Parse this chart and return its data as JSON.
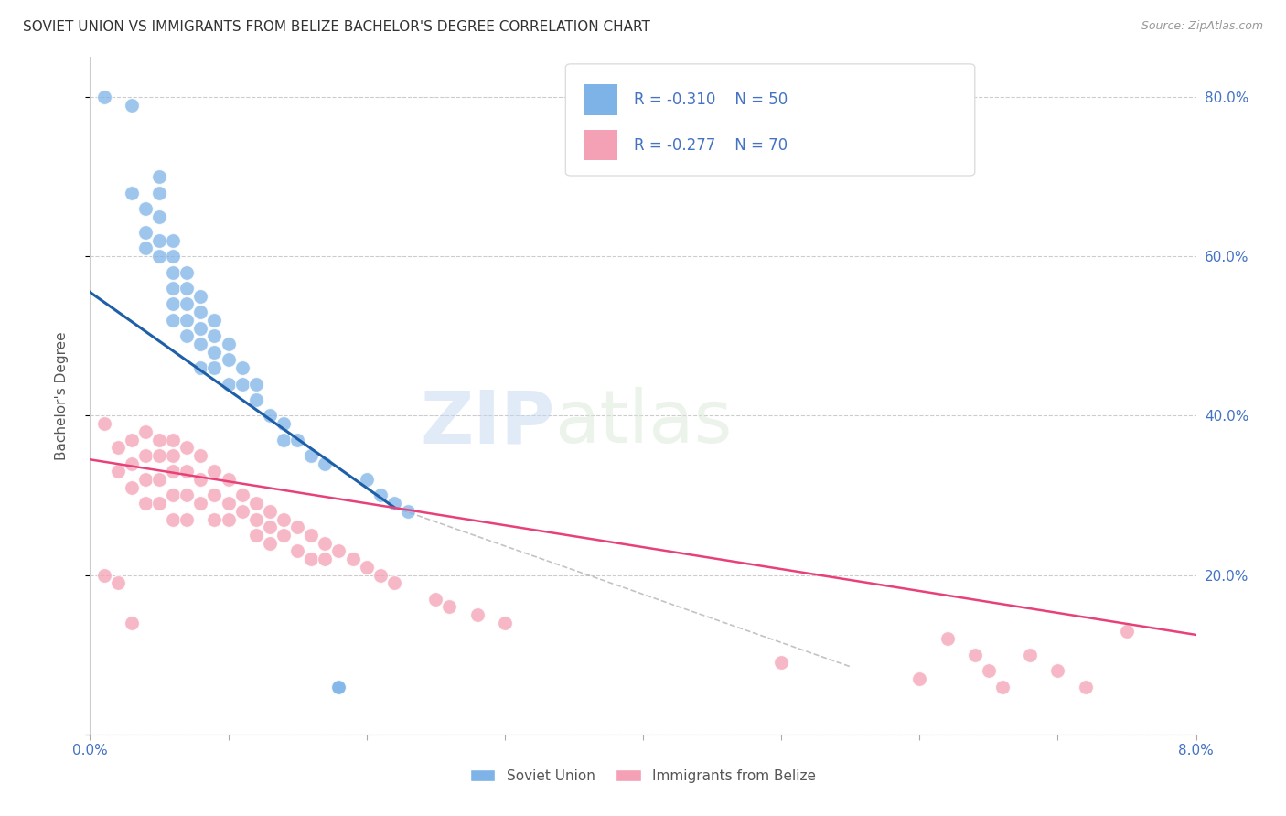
{
  "title": "SOVIET UNION VS IMMIGRANTS FROM BELIZE BACHELOR'S DEGREE CORRELATION CHART",
  "source": "Source: ZipAtlas.com",
  "ylabel": "Bachelor's Degree",
  "x_min": 0.0,
  "x_max": 0.08,
  "y_min": 0.0,
  "y_max": 0.85,
  "y_ticks": [
    0.0,
    0.2,
    0.4,
    0.6,
    0.8
  ],
  "y_tick_labels": [
    "",
    "20.0%",
    "40.0%",
    "60.0%",
    "80.0%"
  ],
  "x_ticks": [
    0.0,
    0.01,
    0.02,
    0.03,
    0.04,
    0.05,
    0.06,
    0.07,
    0.08
  ],
  "legend_R_blue": "R = -0.310",
  "legend_N_blue": "N = 50",
  "legend_R_pink": "R = -0.277",
  "legend_N_pink": "N = 70",
  "legend_label_blue": "Soviet Union",
  "legend_label_pink": "Immigrants from Belize",
  "blue_color": "#7EB3E8",
  "pink_color": "#F4A0B5",
  "blue_line_color": "#1E5FA8",
  "pink_line_color": "#E8417A",
  "watermark_zip": "ZIP",
  "watermark_atlas": "atlas",
  "blue_scatter_x": [
    0.001,
    0.003,
    0.003,
    0.004,
    0.004,
    0.004,
    0.005,
    0.005,
    0.005,
    0.005,
    0.005,
    0.006,
    0.006,
    0.006,
    0.006,
    0.006,
    0.006,
    0.007,
    0.007,
    0.007,
    0.007,
    0.007,
    0.008,
    0.008,
    0.008,
    0.008,
    0.008,
    0.009,
    0.009,
    0.009,
    0.009,
    0.01,
    0.01,
    0.01,
    0.011,
    0.011,
    0.012,
    0.012,
    0.013,
    0.014,
    0.014,
    0.015,
    0.016,
    0.017,
    0.018,
    0.018,
    0.02,
    0.021,
    0.022,
    0.023
  ],
  "blue_scatter_y": [
    0.8,
    0.79,
    0.68,
    0.66,
    0.63,
    0.61,
    0.7,
    0.68,
    0.65,
    0.62,
    0.6,
    0.62,
    0.6,
    0.58,
    0.56,
    0.54,
    0.52,
    0.58,
    0.56,
    0.54,
    0.52,
    0.5,
    0.55,
    0.53,
    0.51,
    0.49,
    0.46,
    0.52,
    0.5,
    0.48,
    0.46,
    0.49,
    0.47,
    0.44,
    0.46,
    0.44,
    0.44,
    0.42,
    0.4,
    0.39,
    0.37,
    0.37,
    0.35,
    0.34,
    0.06,
    0.06,
    0.32,
    0.3,
    0.29,
    0.28
  ],
  "pink_scatter_x": [
    0.001,
    0.001,
    0.002,
    0.002,
    0.002,
    0.003,
    0.003,
    0.003,
    0.003,
    0.004,
    0.004,
    0.004,
    0.004,
    0.005,
    0.005,
    0.005,
    0.005,
    0.006,
    0.006,
    0.006,
    0.006,
    0.006,
    0.007,
    0.007,
    0.007,
    0.007,
    0.008,
    0.008,
    0.008,
    0.009,
    0.009,
    0.009,
    0.01,
    0.01,
    0.01,
    0.011,
    0.011,
    0.012,
    0.012,
    0.012,
    0.013,
    0.013,
    0.013,
    0.014,
    0.014,
    0.015,
    0.015,
    0.016,
    0.016,
    0.017,
    0.017,
    0.018,
    0.019,
    0.02,
    0.021,
    0.022,
    0.025,
    0.026,
    0.028,
    0.03,
    0.05,
    0.06,
    0.062,
    0.064,
    0.065,
    0.066,
    0.068,
    0.07,
    0.072,
    0.075
  ],
  "pink_scatter_y": [
    0.39,
    0.2,
    0.36,
    0.33,
    0.19,
    0.37,
    0.34,
    0.31,
    0.14,
    0.38,
    0.35,
    0.32,
    0.29,
    0.37,
    0.35,
    0.32,
    0.29,
    0.37,
    0.35,
    0.33,
    0.3,
    0.27,
    0.36,
    0.33,
    0.3,
    0.27,
    0.35,
    0.32,
    0.29,
    0.33,
    0.3,
    0.27,
    0.32,
    0.29,
    0.27,
    0.3,
    0.28,
    0.29,
    0.27,
    0.25,
    0.28,
    0.26,
    0.24,
    0.27,
    0.25,
    0.26,
    0.23,
    0.25,
    0.22,
    0.24,
    0.22,
    0.23,
    0.22,
    0.21,
    0.2,
    0.19,
    0.17,
    0.16,
    0.15,
    0.14,
    0.09,
    0.07,
    0.12,
    0.1,
    0.08,
    0.06,
    0.1,
    0.08,
    0.06,
    0.13
  ],
  "blue_line_x": [
    0.0,
    0.022
  ],
  "blue_line_y": [
    0.555,
    0.285
  ],
  "pink_line_x": [
    0.0,
    0.08
  ],
  "pink_line_y": [
    0.345,
    0.125
  ],
  "dashed_line_x": [
    0.022,
    0.055
  ],
  "dashed_line_y": [
    0.285,
    0.085
  ]
}
